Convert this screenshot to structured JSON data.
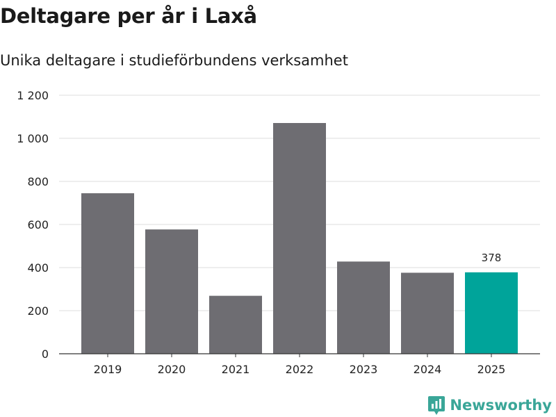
{
  "chart_data": {
    "type": "bar",
    "title": "Deltagare per år i Laxå",
    "subtitle": "Unika deltagare i studieförbundens verksamhet",
    "categories": [
      "2019",
      "2020",
      "2021",
      "2022",
      "2023",
      "2024",
      "2025"
    ],
    "values": [
      745,
      577,
      269,
      1071,
      428,
      376,
      378
    ],
    "highlight_index": 6,
    "highlight_label": "378",
    "ylim": [
      0,
      1200
    ],
    "yticks": [
      0,
      200,
      400,
      600,
      800,
      1000,
      1200
    ],
    "ytick_labels": [
      "0",
      "200",
      "400",
      "600",
      "800",
      "1 000",
      "1 200"
    ],
    "xlabel": "",
    "ylabel": "",
    "grid": true,
    "colors": {
      "bar": "#6e6d72",
      "highlight": "#00a49a",
      "grid": "#dcdcdc",
      "axis": "#333333"
    }
  },
  "brand": {
    "name": "Newsworthy",
    "logo_icon": "newsworthy-logo-icon",
    "color": "#3aa698"
  }
}
